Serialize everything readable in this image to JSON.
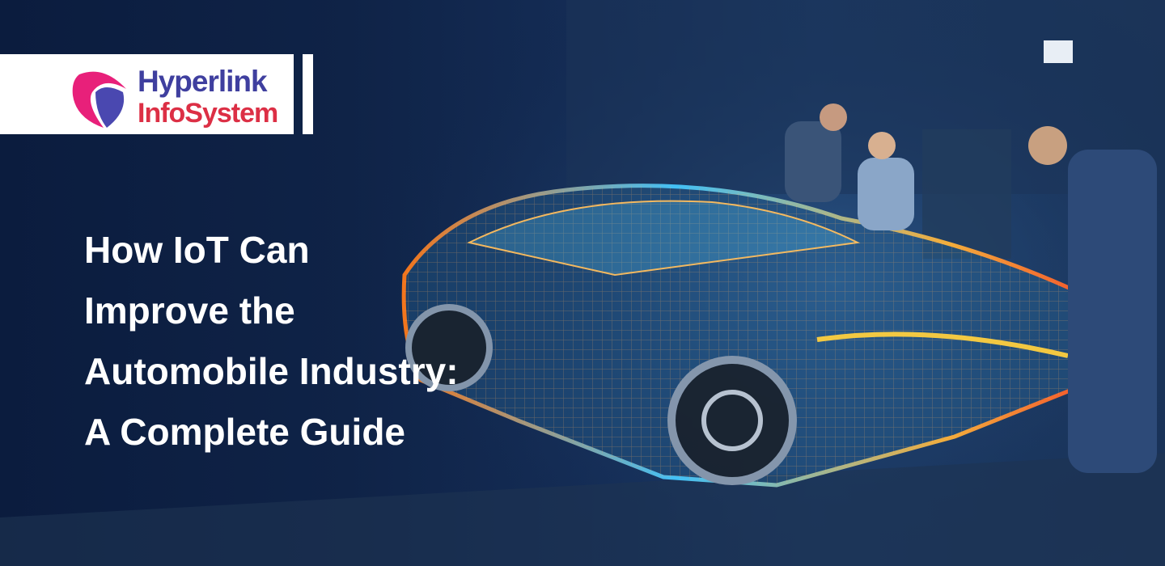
{
  "brand": {
    "line1": "Hyperlink",
    "line2": "InfoSystem",
    "colors": {
      "primary": "#3f3f9f",
      "secondary": "#dc2f45",
      "accent": "#e8207a"
    }
  },
  "headline": {
    "lines": [
      "How IoT Can",
      "Improve the",
      "Automobile Industry:",
      "A Complete Guide"
    ]
  },
  "image": {
    "subject": "holographic-wireframe-car-with-engineers"
  }
}
